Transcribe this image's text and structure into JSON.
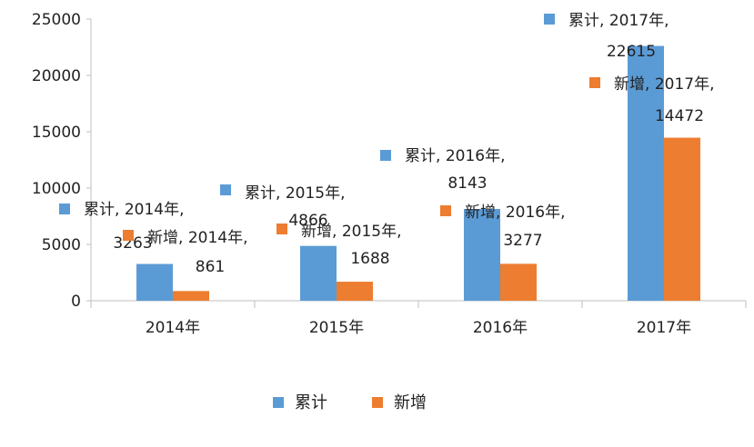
{
  "chart_data": {
    "type": "bar",
    "title": "",
    "xlabel": "",
    "ylabel": "",
    "categories": [
      "2014年",
      "2015年",
      "2016年",
      "2017年"
    ],
    "series": [
      {
        "name": "累计",
        "color": "#5b9bd5",
        "values": [
          3263,
          4866,
          8143,
          22615
        ]
      },
      {
        "name": "新增",
        "color": "#ed7d31",
        "values": [
          861,
          1688,
          3277,
          14472
        ]
      }
    ],
    "ylim": [
      0,
      25000
    ],
    "yticks": [
      "0",
      "5000",
      "10000",
      "15000",
      "20000",
      "25000"
    ],
    "grid": false,
    "legend": "bottom",
    "data_labels": [
      [
        {
          "series": "累计",
          "year": "2014年,",
          "value": "3263"
        },
        {
          "series": "累计",
          "year": "2015年,",
          "value": "4866"
        },
        {
          "series": "累计",
          "year": "2016年,",
          "value": "8143"
        },
        {
          "series": "累计",
          "year": "2017年,",
          "value": "22615"
        }
      ],
      [
        {
          "series": "新增",
          "year": "2014年,",
          "value": "861"
        },
        {
          "series": "新增",
          "year": "2015年,",
          "value": "1688"
        },
        {
          "series": "新增",
          "year": "2016年,",
          "value": "3277"
        },
        {
          "series": "新增",
          "year": "2017年,",
          "value": "14472"
        }
      ]
    ]
  }
}
